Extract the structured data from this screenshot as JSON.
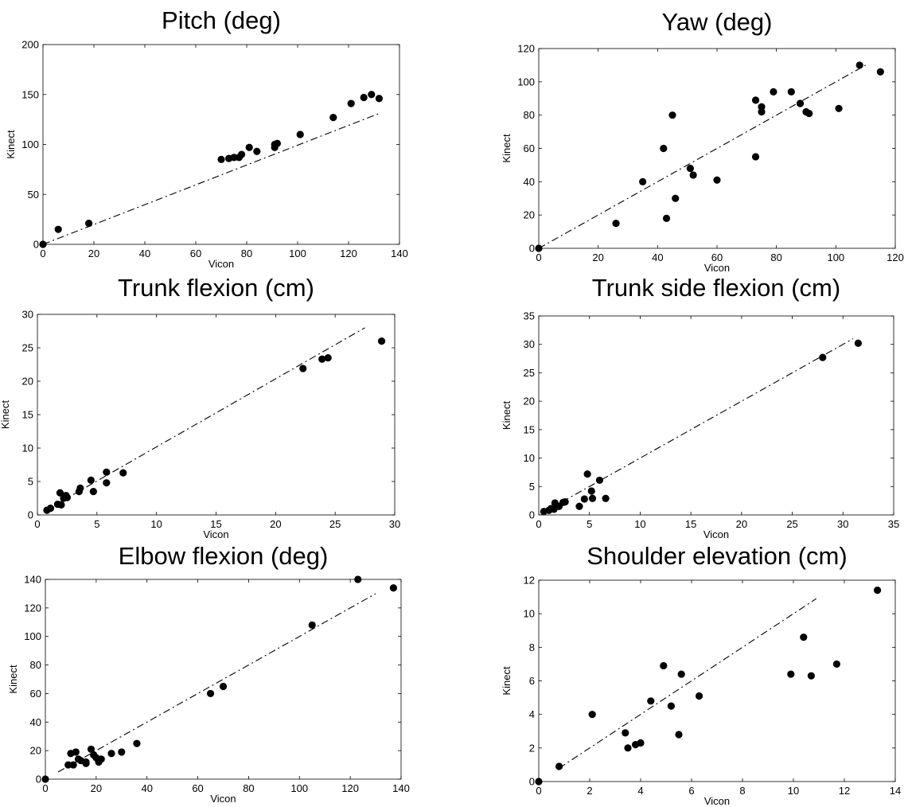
{
  "figure": {
    "background": "#ffffff",
    "marker_color": "#000000",
    "line_style": "dash-dot"
  },
  "chart_data": [
    {
      "type": "scatter",
      "title": "Pitch (deg)",
      "xlabel": "Vicon",
      "ylabel": "Kinect",
      "xlim": [
        0,
        140
      ],
      "ylim": [
        0,
        200
      ],
      "xticks": [
        0,
        20,
        40,
        60,
        80,
        100,
        120,
        140
      ],
      "yticks": [
        0,
        50,
        100,
        150,
        200
      ],
      "grid": false,
      "points": [
        [
          0,
          0
        ],
        [
          6,
          15
        ],
        [
          18,
          21
        ],
        [
          70,
          85
        ],
        [
          73,
          86
        ],
        [
          75,
          87
        ],
        [
          77,
          87
        ],
        [
          78,
          90
        ],
        [
          81,
          97
        ],
        [
          84,
          93
        ],
        [
          91,
          97
        ],
        [
          91,
          100
        ],
        [
          92,
          101
        ],
        [
          101,
          110
        ],
        [
          114,
          127
        ],
        [
          121,
          141
        ],
        [
          126,
          147
        ],
        [
          129,
          150
        ],
        [
          132,
          146
        ]
      ],
      "fit_line": [
        [
          0,
          0
        ],
        [
          132,
          131
        ]
      ]
    },
    {
      "type": "scatter",
      "title": "Yaw (deg)",
      "xlabel": "Vicon",
      "ylabel": "Kinect",
      "xlim": [
        0,
        120
      ],
      "ylim": [
        0,
        120
      ],
      "xticks": [
        0,
        20,
        40,
        60,
        80,
        100,
        120
      ],
      "yticks": [
        0,
        20,
        40,
        60,
        80,
        100,
        120
      ],
      "grid": false,
      "points": [
        [
          0,
          0
        ],
        [
          26,
          15
        ],
        [
          35,
          40
        ],
        [
          42,
          60
        ],
        [
          43,
          18
        ],
        [
          45,
          80
        ],
        [
          46,
          30
        ],
        [
          51,
          48
        ],
        [
          52,
          44
        ],
        [
          60,
          41
        ],
        [
          73,
          55
        ],
        [
          73,
          89
        ],
        [
          75,
          85
        ],
        [
          75,
          82
        ],
        [
          79,
          94
        ],
        [
          85,
          94
        ],
        [
          88,
          87
        ],
        [
          90,
          82
        ],
        [
          91,
          81
        ],
        [
          101,
          84
        ],
        [
          108,
          110
        ],
        [
          115,
          106
        ]
      ],
      "fit_line": [
        [
          0,
          0
        ],
        [
          110,
          110
        ]
      ]
    },
    {
      "type": "scatter",
      "title": "Trunk flexion (cm)",
      "xlabel": "Vicon",
      "ylabel": "Kinect",
      "xlim": [
        0,
        30
      ],
      "ylim": [
        0,
        30
      ],
      "xticks": [
        0,
        5,
        10,
        15,
        20,
        25,
        30
      ],
      "yticks": [
        0,
        5,
        10,
        15,
        20,
        25,
        30
      ],
      "grid": false,
      "points": [
        [
          0.8,
          0.7
        ],
        [
          1.1,
          1.0
        ],
        [
          1.7,
          1.6
        ],
        [
          1.9,
          3.3
        ],
        [
          2.0,
          1.5
        ],
        [
          2.2,
          2.5
        ],
        [
          2.4,
          2.9
        ],
        [
          2.5,
          2.6
        ],
        [
          3.5,
          3.5
        ],
        [
          3.6,
          4.0
        ],
        [
          4.5,
          5.2
        ],
        [
          4.7,
          3.5
        ],
        [
          5.8,
          6.4
        ],
        [
          5.8,
          4.8
        ],
        [
          7.2,
          6.3
        ],
        [
          22.3,
          21.9
        ],
        [
          23.9,
          23.3
        ],
        [
          24.4,
          23.5
        ],
        [
          28.9,
          26.0
        ]
      ],
      "fit_line": [
        [
          0.8,
          0.8
        ],
        [
          27.5,
          28.0
        ]
      ]
    },
    {
      "type": "scatter",
      "title": "Trunk side flexion (cm)",
      "xlabel": "Vicon",
      "ylabel": "Kinect",
      "xlim": [
        0,
        35
      ],
      "ylim": [
        0,
        35
      ],
      "xticks": [
        0,
        5,
        10,
        15,
        20,
        25,
        30,
        35
      ],
      "yticks": [
        0,
        5,
        10,
        15,
        20,
        25,
        30,
        35
      ],
      "grid": false,
      "points": [
        [
          0.5,
          0.6
        ],
        [
          1.0,
          0.8
        ],
        [
          1.2,
          1.1
        ],
        [
          1.5,
          1.0
        ],
        [
          1.6,
          2.1
        ],
        [
          1.8,
          1.6
        ],
        [
          2.0,
          1.5
        ],
        [
          2.4,
          2.2
        ],
        [
          2.6,
          2.3
        ],
        [
          4.0,
          1.5
        ],
        [
          4.5,
          2.8
        ],
        [
          4.8,
          7.2
        ],
        [
          5.2,
          4.2
        ],
        [
          5.3,
          2.9
        ],
        [
          6.0,
          6.1
        ],
        [
          6.6,
          2.9
        ],
        [
          28.0,
          27.7
        ],
        [
          31.5,
          30.2
        ]
      ],
      "fit_line": [
        [
          1.0,
          1.0
        ],
        [
          31.0,
          31.0
        ]
      ]
    },
    {
      "type": "scatter",
      "title": "Elbow flexion (deg)",
      "xlabel": "Vicon",
      "ylabel": "Kinect",
      "xlim": [
        0,
        140
      ],
      "ylim": [
        0,
        140
      ],
      "xticks": [
        0,
        20,
        40,
        60,
        80,
        100,
        120,
        140
      ],
      "yticks": [
        0,
        20,
        40,
        60,
        80,
        100,
        120,
        140
      ],
      "grid": false,
      "points": [
        [
          0,
          0
        ],
        [
          9,
          10
        ],
        [
          10,
          18
        ],
        [
          11,
          10
        ],
        [
          12,
          19
        ],
        [
          13,
          14
        ],
        [
          14,
          13
        ],
        [
          16,
          12
        ],
        [
          16,
          11
        ],
        [
          18,
          21
        ],
        [
          19,
          17
        ],
        [
          20,
          15
        ],
        [
          21,
          12
        ],
        [
          22,
          14
        ],
        [
          26,
          18
        ],
        [
          30,
          19
        ],
        [
          36,
          25
        ],
        [
          65,
          60
        ],
        [
          70,
          65
        ],
        [
          105,
          108
        ],
        [
          123,
          140
        ],
        [
          137,
          134
        ]
      ],
      "fit_line": [
        [
          5,
          5
        ],
        [
          130,
          130
        ]
      ]
    },
    {
      "type": "scatter",
      "title": "Shoulder elevation (cm)",
      "xlabel": "Vicon",
      "ylabel": "Kinect",
      "xlim": [
        0,
        14
      ],
      "ylim": [
        0,
        12
      ],
      "xticks": [
        0,
        2,
        4,
        6,
        8,
        10,
        12,
        14
      ],
      "yticks": [
        0,
        2,
        4,
        6,
        8,
        10,
        12
      ],
      "grid": false,
      "points": [
        [
          0,
          0
        ],
        [
          0.8,
          0.9
        ],
        [
          2.1,
          4.0
        ],
        [
          3.4,
          2.9
        ],
        [
          3.5,
          2.0
        ],
        [
          3.8,
          2.2
        ],
        [
          4.0,
          2.3
        ],
        [
          4.4,
          4.8
        ],
        [
          4.9,
          6.9
        ],
        [
          5.2,
          4.5
        ],
        [
          5.5,
          2.8
        ],
        [
          5.6,
          6.4
        ],
        [
          6.3,
          5.1
        ],
        [
          9.9,
          6.4
        ],
        [
          10.4,
          8.6
        ],
        [
          10.7,
          6.3
        ],
        [
          11.7,
          7.0
        ],
        [
          13.3,
          11.4
        ]
      ],
      "fit_line": [
        [
          0.8,
          0.8
        ],
        [
          10.9,
          10.9
        ]
      ]
    }
  ]
}
